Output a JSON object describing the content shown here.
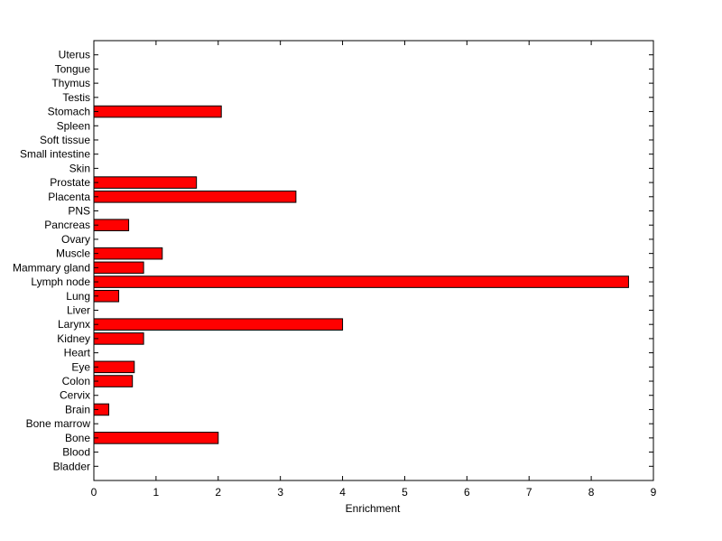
{
  "chart_data": {
    "type": "bar",
    "orientation": "horizontal",
    "title": "",
    "xlabel": "Enrichment",
    "ylabel": "",
    "xlim": [
      0,
      9
    ],
    "xticks": [
      0,
      1,
      2,
      3,
      4,
      5,
      6,
      7,
      8,
      9
    ],
    "grid": false,
    "bar_color": "#ff0000",
    "edge_color": "#000000",
    "categories": [
      "Bladder",
      "Blood",
      "Bone",
      "Bone marrow",
      "Brain",
      "Cervix",
      "Colon",
      "Eye",
      "Heart",
      "Kidney",
      "Larynx",
      "Liver",
      "Lung",
      "Lymph node",
      "Mammary gland",
      "Muscle",
      "Ovary",
      "Pancreas",
      "PNS",
      "Placenta",
      "Prostate",
      "Skin",
      "Small intestine",
      "Soft tissue",
      "Spleen",
      "Stomach",
      "Testis",
      "Thymus",
      "Tongue",
      "Uterus"
    ],
    "values": [
      0,
      0,
      2.0,
      0,
      0.24,
      0,
      0.62,
      0.65,
      0,
      0.8,
      4.0,
      0,
      0.4,
      8.6,
      0.8,
      1.1,
      0,
      0.56,
      0,
      3.25,
      1.65,
      0,
      0,
      0,
      0,
      2.05,
      0,
      0,
      0,
      0
    ]
  }
}
